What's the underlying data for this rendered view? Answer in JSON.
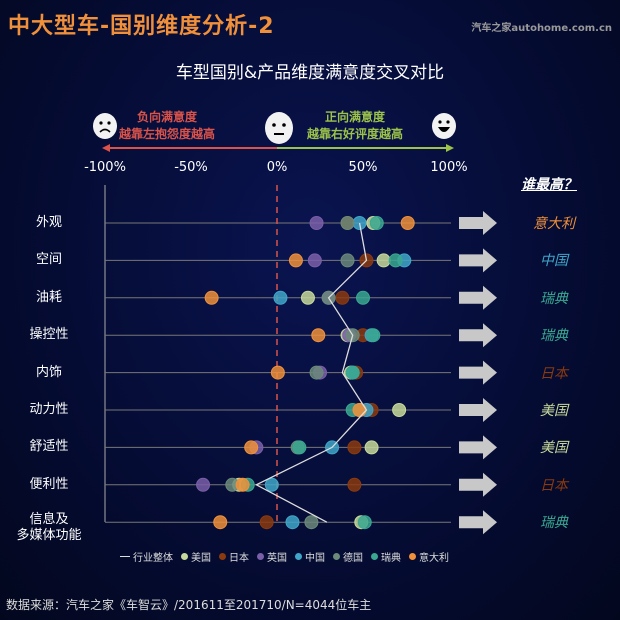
{
  "header": {
    "title": "中大型车-国别维度分析-2",
    "brand": "汽车之家autohome.com.cn",
    "subtitle": "车型国别&产品维度满意度交叉对比"
  },
  "scale": {
    "negative_title": "负向满意度",
    "negative_desc": "越靠左抱怨度越高",
    "positive_title": "正向满意度",
    "positive_desc": "越靠右好评度越高",
    "faces": [
      "sad-face-icon",
      "neutral-face-icon",
      "happy-face-icon"
    ]
  },
  "winners_title": "谁最高？",
  "source": "数据来源：汽车之家《车智云》/201611至201710/N=4044位车主",
  "colors": {
    "overall": "#dddddd",
    "美国": "#c7d99a",
    "日本": "#8b3a0e",
    "英国": "#7a5fa8",
    "中国": "#3fa6c8",
    "德国": "#6b8a7a",
    "瑞典": "#3aa890",
    "意大利": "#f0903a",
    "negative": "#d9534a",
    "positive": "#9cc24a"
  },
  "chart_data": {
    "type": "scatter",
    "x_ticks": [
      "-100%",
      "-50%",
      "0%",
      "50%",
      "100%"
    ],
    "xlim": [
      -100,
      100
    ],
    "categories": [
      "外观",
      "空间",
      "油耗",
      "操控性",
      "内饰",
      "动力性",
      "舒适性",
      "便利性",
      "信息及多媒体功能"
    ],
    "category_labels": [
      "外观",
      "空间",
      "油耗",
      "操控性",
      "内饰",
      "动力性",
      "舒适性",
      "便利性",
      "信息及\n多媒体功能"
    ],
    "legend": [
      "行业整体",
      "美国",
      "日本",
      "英国",
      "中国",
      "德国",
      "瑞典",
      "意大利"
    ],
    "overall": [
      48,
      52,
      30,
      44,
      38,
      52,
      32,
      -12,
      29
    ],
    "series": [
      {
        "name": "美国",
        "values": [
          56,
          62,
          18,
          41,
          43,
          71,
          55,
          -22,
          49
        ]
      },
      {
        "name": "日本",
        "values": [
          41,
          52,
          38,
          50,
          46,
          55,
          45,
          45,
          -6
        ]
      },
      {
        "name": "英国",
        "values": [
          23,
          22,
          30,
          42,
          25,
          48,
          -12,
          -43,
          null
        ]
      },
      {
        "name": "中国",
        "values": [
          48,
          74,
          2,
          55,
          44,
          52,
          32,
          -3,
          9
        ]
      },
      {
        "name": "德国",
        "values": [
          41,
          41,
          30,
          44,
          23,
          48,
          12,
          -26,
          20
        ]
      },
      {
        "name": "瑞典",
        "values": [
          58,
          69,
          50,
          56,
          44,
          44,
          13,
          -17,
          51
        ]
      },
      {
        "name": "意大利",
        "values": [
          76,
          11,
          -38,
          24,
          0.5,
          48,
          -15,
          -20,
          -33
        ]
      }
    ],
    "winners": [
      "意大利",
      "中国",
      "瑞典",
      "瑞典",
      "日本",
      "美国",
      "美国",
      "日本",
      "瑞典"
    ],
    "legend_placement": "bottom"
  }
}
